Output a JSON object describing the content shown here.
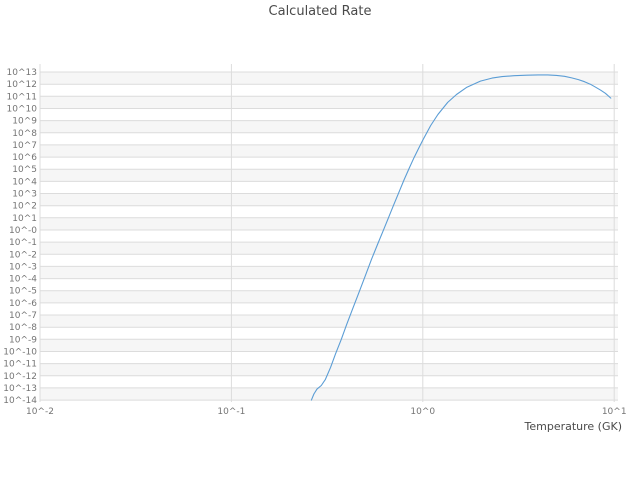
{
  "chart_data": {
    "type": "line",
    "title": "Calculated Rate",
    "xlabel": "Temperature (GK)",
    "ylabel": "",
    "x_scale": "log10",
    "y_scale": "log10",
    "xlim_log": [
      -2,
      1.02
    ],
    "ylim_log": [
      -14.16,
      13.66
    ],
    "grid": true,
    "legend": "none",
    "x_ticks": [
      {
        "log": -2,
        "label": "10^-2"
      },
      {
        "log": -1,
        "label": "10^-1"
      },
      {
        "log": 0,
        "label": "10^0"
      },
      {
        "log": 1,
        "label": "10^1"
      }
    ],
    "y_ticks": [
      {
        "log": 13,
        "label": "10^13"
      },
      {
        "log": 12,
        "label": "10^12"
      },
      {
        "log": 11,
        "label": "10^11"
      },
      {
        "log": 10,
        "label": "10^10"
      },
      {
        "log": 9,
        "label": "10^9"
      },
      {
        "log": 8,
        "label": "10^8"
      },
      {
        "log": 7,
        "label": "10^7"
      },
      {
        "log": 6,
        "label": "10^6"
      },
      {
        "log": 5,
        "label": "10^5"
      },
      {
        "log": 4,
        "label": "10^4"
      },
      {
        "log": 3,
        "label": "10^3"
      },
      {
        "log": 2,
        "label": "10^2"
      },
      {
        "log": 1,
        "label": "10^1"
      },
      {
        "log": 0,
        "label": "10^-0"
      },
      {
        "log": -1,
        "label": "10^-1"
      },
      {
        "log": -2,
        "label": "10^-2"
      },
      {
        "log": -3,
        "label": "10^-3"
      },
      {
        "log": -4,
        "label": "10^-4"
      },
      {
        "log": -5,
        "label": "10^-5"
      },
      {
        "log": -6,
        "label": "10^-6"
      },
      {
        "log": -7,
        "label": "10^-7"
      },
      {
        "log": -8,
        "label": "10^-8"
      },
      {
        "log": -9,
        "label": "10^-9"
      },
      {
        "log": -10,
        "label": "10^-10"
      },
      {
        "log": -11,
        "label": "10^-11"
      },
      {
        "log": -12,
        "label": "10^-12"
      },
      {
        "log": -13,
        "label": "10^-13"
      },
      {
        "log": -14,
        "label": "10^-14"
      }
    ],
    "colors": {
      "line": "#5b9dd5",
      "grid": "#dcdcdc",
      "band": "#f6f6f6",
      "tick_text": "#757575",
      "title_text": "#4a4a4a",
      "background": "#ffffff"
    },
    "series": [
      {
        "name": "calculated-rate",
        "point_format": [
          "T_GK",
          "log10_rate"
        ],
        "points": [
          [
            0.262,
            -14.0
          ],
          [
            0.27,
            -13.5
          ],
          [
            0.28,
            -13.1
          ],
          [
            0.295,
            -12.8
          ],
          [
            0.31,
            -12.3
          ],
          [
            0.33,
            -11.3
          ],
          [
            0.35,
            -10.2
          ],
          [
            0.375,
            -9.0
          ],
          [
            0.4,
            -7.8
          ],
          [
            0.43,
            -6.5
          ],
          [
            0.46,
            -5.3
          ],
          [
            0.5,
            -3.8
          ],
          [
            0.54,
            -2.4
          ],
          [
            0.58,
            -1.2
          ],
          [
            0.62,
            -0.1
          ],
          [
            0.66,
            0.95
          ],
          [
            0.7,
            1.95
          ],
          [
            0.75,
            3.1
          ],
          [
            0.8,
            4.15
          ],
          [
            0.85,
            5.1
          ],
          [
            0.9,
            5.95
          ],
          [
            0.95,
            6.7
          ],
          [
            1.0,
            7.4
          ],
          [
            1.1,
            8.6
          ],
          [
            1.2,
            9.5
          ],
          [
            1.35,
            10.5
          ],
          [
            1.5,
            11.15
          ],
          [
            1.7,
            11.75
          ],
          [
            2.0,
            12.25
          ],
          [
            2.3,
            12.5
          ],
          [
            2.6,
            12.62
          ],
          [
            3.0,
            12.7
          ],
          [
            3.5,
            12.74
          ],
          [
            4.0,
            12.76
          ],
          [
            4.5,
            12.76
          ],
          [
            5.0,
            12.72
          ],
          [
            5.5,
            12.65
          ],
          [
            6.0,
            12.52
          ],
          [
            6.5,
            12.38
          ],
          [
            7.0,
            12.2
          ],
          [
            7.5,
            12.0
          ],
          [
            8.0,
            11.75
          ],
          [
            8.5,
            11.5
          ],
          [
            9.0,
            11.25
          ],
          [
            9.6,
            10.85
          ]
        ]
      }
    ]
  }
}
